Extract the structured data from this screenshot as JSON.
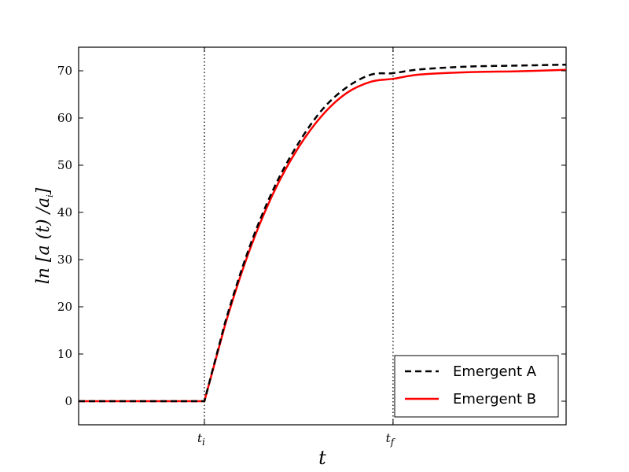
{
  "chart_data": {
    "type": "line",
    "title": "",
    "xlabel": "t",
    "ylabel_text": "ln [a (t) /a",
    "ylabel_sub": "i",
    "ylabel_close": "]",
    "ylim": [
      -5,
      75
    ],
    "xlim": [
      0,
      1
    ],
    "y_ticks": [
      0,
      10,
      20,
      30,
      40,
      50,
      60,
      70
    ],
    "x_ticks": [
      {
        "x": 0.258,
        "base": "t",
        "sub": "i"
      },
      {
        "x": 0.645,
        "base": "t",
        "sub": "f"
      }
    ],
    "vertical_lines": [
      0.258,
      0.645
    ],
    "grid": false,
    "legend_position": "lower-right",
    "series": [
      {
        "name": "Emergent A",
        "style": "dashed",
        "color": "#000000",
        "x": [
          0,
          0.1,
          0.2,
          0.258,
          0.3,
          0.35,
          0.4,
          0.45,
          0.5,
          0.55,
          0.6,
          0.645,
          0.7,
          0.8,
          0.9,
          1.0
        ],
        "y": [
          0,
          0,
          0,
          0,
          16.5,
          32.5,
          45,
          54.5,
          61.8,
          66.5,
          69.2,
          69.5,
          70.3,
          70.9,
          71.1,
          71.3
        ]
      },
      {
        "name": "Emergent B",
        "style": "solid",
        "color": "#ff0000",
        "x": [
          0,
          0.1,
          0.2,
          0.258,
          0.3,
          0.35,
          0.4,
          0.45,
          0.5,
          0.55,
          0.6,
          0.645,
          0.7,
          0.8,
          0.9,
          1.0
        ],
        "y": [
          0,
          0,
          0,
          0,
          16,
          31.8,
          44.2,
          53.6,
          60.6,
          65.3,
          67.7,
          68.3,
          69.2,
          69.7,
          69.9,
          70.2
        ]
      }
    ]
  }
}
